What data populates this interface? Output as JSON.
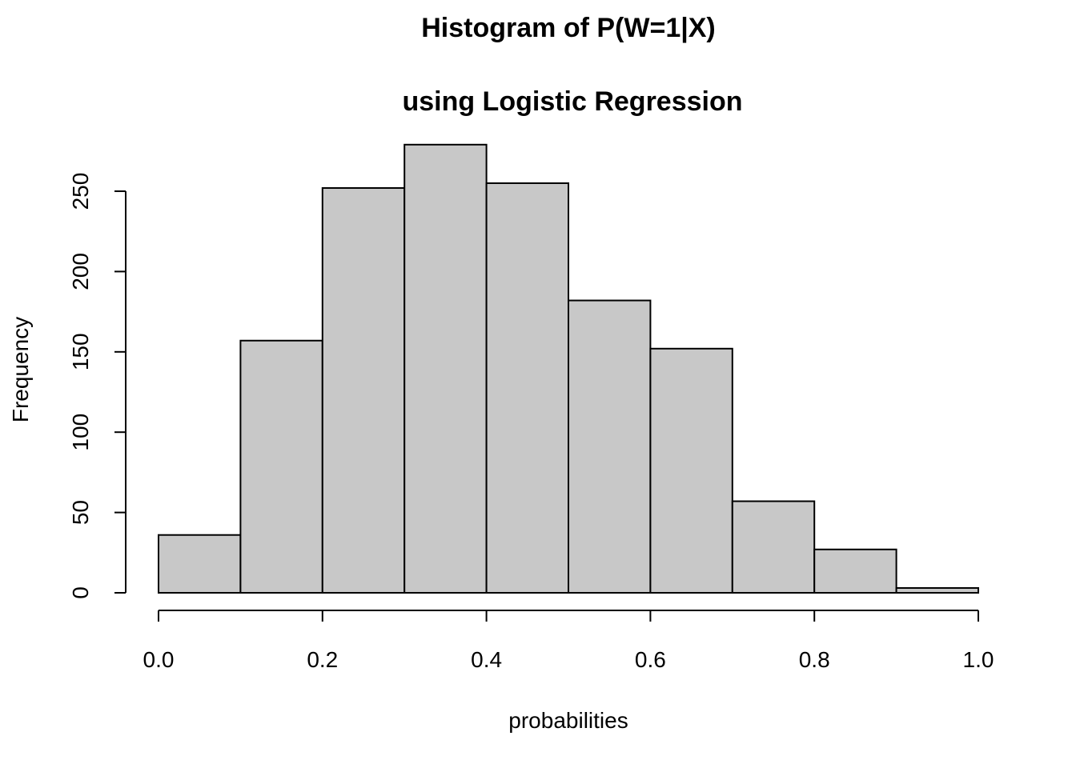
{
  "chart_data": {
    "type": "histogram",
    "title": "Histogram of P(W=1|X)",
    "subtitle": "using Logistic Regression",
    "x_label": "probabilities",
    "y_label": "Frequency",
    "bins": [
      0,
      0.1,
      0.2,
      0.3,
      0.4,
      0.5,
      0.6,
      0.7,
      0.8,
      0.9,
      1
    ],
    "values": [
      36,
      157,
      252,
      279,
      255,
      182,
      152,
      57,
      27,
      3
    ],
    "color": "#c8c8c8",
    "xlim": [
      0,
      1
    ],
    "xticks": [
      {
        "value": 0,
        "label": "0.0"
      },
      0.2,
      0.4,
      0.6,
      0.8,
      {
        "value": 1,
        "label": "1.0"
      }
    ],
    "ylim": [
      0,
      279
    ],
    "yticks": [
      0,
      50,
      100,
      150,
      200,
      250
    ]
  }
}
